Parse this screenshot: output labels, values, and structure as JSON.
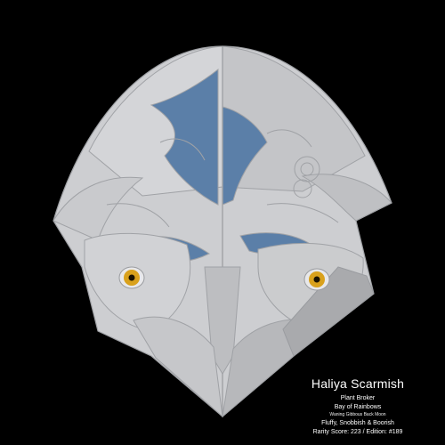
{
  "character": {
    "name": "Haliya Scarmish",
    "occupation": "Plant Broker",
    "location": "Bay of Rainbows",
    "moon_phase": "Waning Gibbous Back Moon",
    "traits": "Fluffy, Snobbish & Boorish",
    "rarity_line": "Rarity Score: 223 / Edition: #189"
  },
  "art": {
    "background": "#000000",
    "fur_light": "#d2d3d6",
    "fur_mid": "#c0c1c4",
    "fur_dark": "#a9aaad",
    "outline": "#a0a2a6",
    "accent_blue": "#5b7fa8",
    "eye_iris": "#d9a11c",
    "eye_pupil": "#1a1200",
    "icons": [
      "owl-head-artwork",
      "left-eye-icon",
      "right-eye-icon"
    ]
  }
}
